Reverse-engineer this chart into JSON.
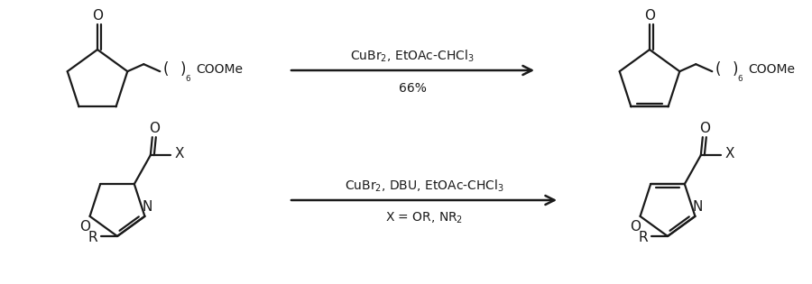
{
  "bg_color": "#ffffff",
  "line_color": "#1a1a1a",
  "fig_width": 9.0,
  "fig_height": 3.15,
  "dpi": 100,
  "rxn1_arrow_label_top": "CuBr$_2$, EtOAc-CHCl$_3$",
  "rxn1_arrow_label_bot": "66%",
  "rxn2_arrow_label_top": "CuBr$_2$, DBU, EtOAc-CHCl$_3$",
  "rxn2_arrow_label_bot": "X = OR, NR$_2$"
}
